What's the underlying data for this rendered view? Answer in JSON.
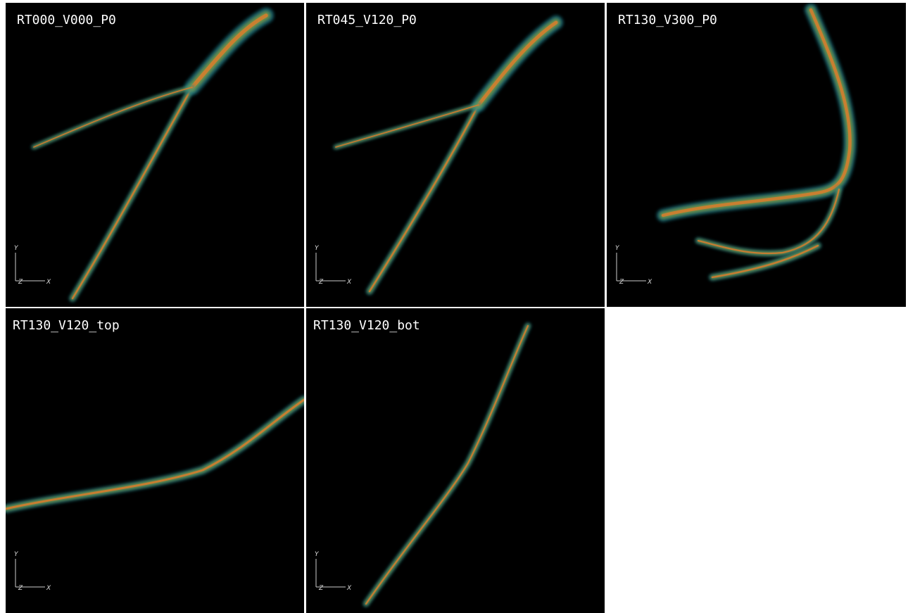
{
  "panels": [
    {
      "title": "RT000_V000_P0",
      "axes": {
        "y": "Y",
        "z": "Z",
        "x": "X"
      }
    },
    {
      "title": "RT045_V120_P0",
      "axes": {
        "y": "Y",
        "z": "Z",
        "x": "X"
      }
    },
    {
      "title": "RT130_V300_P0",
      "axes": {
        "y": "Y",
        "z": "Z",
        "x": "X"
      }
    },
    {
      "title": "RT130_V120_top",
      "axes": {
        "y": "Y",
        "z": "Z",
        "x": "X"
      }
    },
    {
      "title": "RT130_V120_bot",
      "axes": {
        "y": "Y",
        "z": "Z",
        "x": "X"
      }
    }
  ]
}
